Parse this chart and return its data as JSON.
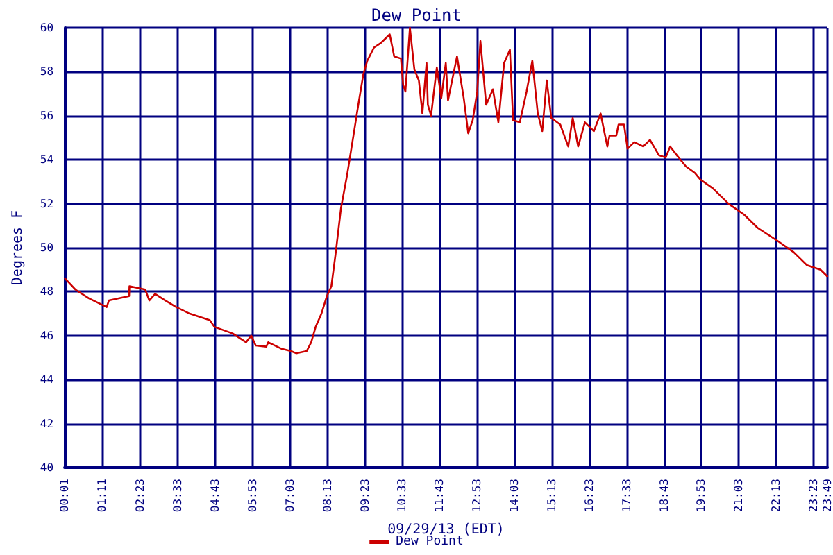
{
  "chart_data": {
    "type": "line",
    "title": "Dew Point",
    "xlabel": "09/29/13 (EDT)",
    "ylabel": "Degrees F",
    "xlim": [
      0.017,
      23.817
    ],
    "xticks": [
      {
        "value": 0.017,
        "label": "00:01"
      },
      {
        "value": 1.183,
        "label": "01:11"
      },
      {
        "value": 2.383,
        "label": "02:23"
      },
      {
        "value": 3.55,
        "label": "03:33"
      },
      {
        "value": 4.717,
        "label": "04:43"
      },
      {
        "value": 5.883,
        "label": "05:53"
      },
      {
        "value": 7.05,
        "label": "07:03"
      },
      {
        "value": 8.217,
        "label": "08:13"
      },
      {
        "value": 9.383,
        "label": "09:23"
      },
      {
        "value": 10.55,
        "label": "10:33"
      },
      {
        "value": 11.717,
        "label": "11:43"
      },
      {
        "value": 12.883,
        "label": "12:53"
      },
      {
        "value": 14.05,
        "label": "14:03"
      },
      {
        "value": 15.217,
        "label": "15:13"
      },
      {
        "value": 16.383,
        "label": "16:23"
      },
      {
        "value": 17.55,
        "label": "17:33"
      },
      {
        "value": 18.717,
        "label": "18:43"
      },
      {
        "value": 19.883,
        "label": "19:53"
      },
      {
        "value": 21.05,
        "label": "21:03"
      },
      {
        "value": 22.217,
        "label": "22:13"
      },
      {
        "value": 23.383,
        "label": "23:23"
      },
      {
        "value": 23.817,
        "label": "23:49"
      }
    ],
    "ylim": [
      40,
      60
    ],
    "yticks": [
      40,
      42,
      44,
      46,
      48,
      50,
      52,
      54,
      56,
      58,
      60
    ],
    "grid": true,
    "legend": "bottom",
    "marker": "none",
    "line_style": "solid",
    "series": [
      {
        "name": "Dew Point",
        "color": "#cc0000",
        "x": [
          0.03,
          0.35,
          0.77,
          1.19,
          1.33,
          1.4,
          2.03,
          2.04,
          2.53,
          2.66,
          2.84,
          3.16,
          3.5,
          3.92,
          4.55,
          4.69,
          5.26,
          5.68,
          5.84,
          5.98,
          6.31,
          6.37,
          6.79,
          7.08,
          7.24,
          7.57,
          7.71,
          7.85,
          8.03,
          8.2,
          8.34,
          8.47,
          8.64,
          8.83,
          9.04,
          9.18,
          9.34,
          9.46,
          9.67,
          9.88,
          9.95,
          10.16,
          10.23,
          10.3,
          10.51,
          10.58,
          10.65,
          10.79,
          10.93,
          11.07,
          11.18,
          11.31,
          11.35,
          11.45,
          11.63,
          11.77,
          11.91,
          11.98,
          12.26,
          12.47,
          12.61,
          12.75,
          12.89,
          12.99,
          13.17,
          13.38,
          13.55,
          13.73,
          13.91,
          14.01,
          14.22,
          14.43,
          14.61,
          14.78,
          14.92,
          15.06,
          15.2,
          15.48,
          15.73,
          15.87,
          16.04,
          16.25,
          16.53,
          16.74,
          16.95,
          17.02,
          17.23,
          17.3,
          17.47,
          17.58,
          17.79,
          18.07,
          18.28,
          18.56,
          18.77,
          18.91,
          19.12,
          19.4,
          19.68,
          19.85,
          20.24,
          20.73,
          21.22,
          21.64,
          22.27,
          22.76,
          23.18,
          23.6,
          23.81
        ],
        "values": [
          48.6,
          48.1,
          47.7,
          47.4,
          47.3,
          47.6,
          47.8,
          48.25,
          48.1,
          47.6,
          47.9,
          47.6,
          47.3,
          47.0,
          46.7,
          46.4,
          46.1,
          45.7,
          46.0,
          45.55,
          45.5,
          45.7,
          45.4,
          45.3,
          45.2,
          45.3,
          45.7,
          46.4,
          47.0,
          47.8,
          48.25,
          49.7,
          51.8,
          53.3,
          55.2,
          56.5,
          57.9,
          58.5,
          59.1,
          59.3,
          59.4,
          59.7,
          59.2,
          58.7,
          58.6,
          57.4,
          57.1,
          60.0,
          58.1,
          57.6,
          56.1,
          58.4,
          56.5,
          56.0,
          58.2,
          56.8,
          58.4,
          56.7,
          58.7,
          56.8,
          55.2,
          55.8,
          57.1,
          59.4,
          56.5,
          57.2,
          55.7,
          58.4,
          59.0,
          55.8,
          55.7,
          57.1,
          58.5,
          56.1,
          55.3,
          57.6,
          55.9,
          55.6,
          54.6,
          55.9,
          54.6,
          55.7,
          55.3,
          56.1,
          54.6,
          55.1,
          55.1,
          55.6,
          55.6,
          54.5,
          54.8,
          54.6,
          54.9,
          54.2,
          54.1,
          54.6,
          54.2,
          53.7,
          53.4,
          53.1,
          52.7,
          52.0,
          51.5,
          50.9,
          50.3,
          49.8,
          49.2,
          49.0,
          48.7
        ]
      }
    ]
  }
}
